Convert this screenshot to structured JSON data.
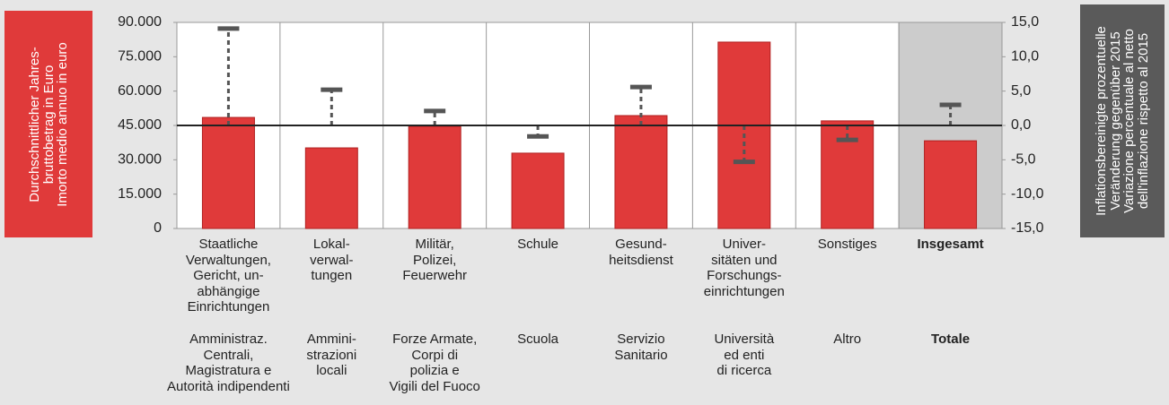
{
  "chart_data": {
    "type": "bar",
    "y_label": "Durchschnittlicher Jahres-\nbruttobetrag in Euro\nImorto medio annuo in euro",
    "y2_label": "Inflationsbereinigte prozentuelle\nVeränderung gegenüber 2015\nVariazione percentuale al netto\ndell'inflazione rispetto al 2015",
    "categories": [
      "Staatliche\nVerwaltungen,\nGericht, un-\nabhängige\nEinrichtungen",
      "Lokal-\nverwal-\ntungen",
      "Militär,\nPolizei,\nFeuerwehr",
      "Schule",
      "Gesund-\nheitsdienst",
      "Univer-\nsitäten und\nForschungs-\neinrichtungen",
      "Sonstiges",
      "Insgesamt"
    ],
    "categories_it": [
      "Amministraz.\nCentrali,\nMagistratura e\nAutorità indipendenti",
      "Ammini-\nstrazioni\nlocali",
      "Forze Armate,\nCorpi di\npolizia e\nVigili del Fuoco",
      "Scuola",
      "Servizio\nSanitario",
      "Università\ned enti\ndi ricerca",
      "Altro",
      "Totale"
    ],
    "series": [
      {
        "color": "#e03a3a",
        "values": [
          48500,
          35200,
          44600,
          32900,
          49300,
          81400,
          47000,
          38300
        ]
      },
      {
        "axis": "y2",
        "color": "#555555",
        "values": [
          14.1,
          5.2,
          2.1,
          -1.6,
          5.6,
          -5.3,
          -2.1,
          3.0
        ]
      }
    ],
    "ylim": [
      0,
      90000
    ],
    "yticks": [
      0,
      {
        "value": 15000,
        "label": "15.000"
      },
      {
        "value": 30000,
        "label": "30.000"
      },
      {
        "value": 45000,
        "label": "45.000"
      },
      {
        "value": 60000,
        "label": "60.000"
      },
      {
        "value": 75000,
        "label": "75.000"
      },
      {
        "value": 90000,
        "label": "90.000"
      }
    ],
    "y2lim": [
      -15,
      15
    ],
    "y2ticks": [
      {
        "value": -15,
        "label": "-15,0"
      },
      {
        "value": -10,
        "label": "-10,0"
      },
      {
        "value": -5,
        "label": "-5,0"
      },
      {
        "value": 0,
        "label": "0,0"
      },
      {
        "value": 5,
        "label": "5,0"
      },
      {
        "value": 10,
        "label": "10,0"
      },
      {
        "value": 15,
        "label": "15,0"
      }
    ]
  }
}
